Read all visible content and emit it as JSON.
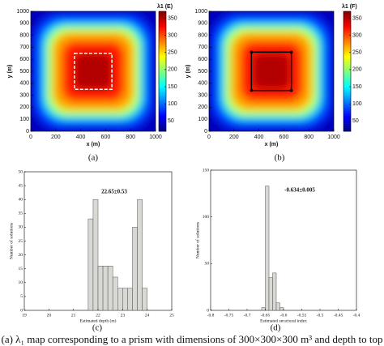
{
  "chart_data": [
    {
      "type": "heatmap",
      "label": "(a)",
      "colorbar_title": "λ1 (E)",
      "xlabel": "x (m)",
      "ylabel": "y (m)",
      "xlim": [
        0,
        1000
      ],
      "ylim": [
        0,
        1000
      ],
      "xticks": [
        0,
        200,
        400,
        600,
        800,
        1000
      ],
      "yticks": [
        0,
        100,
        200,
        300,
        400,
        500,
        600,
        700,
        800,
        900,
        1000
      ],
      "clim": [
        20,
        370
      ],
      "cticks": [
        50,
        100,
        150,
        200,
        250,
        300,
        350
      ],
      "colormap": "jet",
      "outline": {
        "x": [
          350,
          650
        ],
        "y": [
          350,
          650
        ],
        "color": "#ffffff",
        "dashed": true,
        "corner_markers": false
      }
    },
    {
      "type": "heatmap",
      "label": "(b)",
      "colorbar_title": "λ1 (F)",
      "xlabel": "x (m)",
      "ylabel": "y (m)",
      "xlim": [
        0,
        1000
      ],
      "ylim": [
        0,
        1000
      ],
      "xticks": [
        0,
        200,
        400,
        600,
        800,
        1000
      ],
      "yticks": [
        0,
        100,
        200,
        300,
        400,
        500,
        600,
        700,
        800,
        900,
        1000
      ],
      "clim": [
        20,
        370
      ],
      "cticks": [
        50,
        100,
        150,
        200,
        250,
        300,
        350
      ],
      "colormap": "jet",
      "outline": {
        "x": [
          340,
          660
        ],
        "y": [
          340,
          660
        ],
        "color": "#000000",
        "dashed": false,
        "corner_markers": true
      }
    },
    {
      "type": "histogram",
      "label": "(c)",
      "annotation": "22.65±0.53",
      "xlabel": "Estimated depth (m)",
      "ylabel": "Number of solutions",
      "bins": [
        21.6,
        21.8,
        22.0,
        22.2,
        22.4,
        22.6,
        22.8,
        23.0,
        23.2,
        23.4,
        23.6,
        23.8,
        24.0
      ],
      "counts": [
        33,
        40,
        16,
        16,
        16,
        12,
        8,
        8,
        8,
        30,
        40,
        8
      ],
      "color": "#d8d8d4",
      "xlim": [
        19,
        25
      ],
      "ylim": [
        0,
        50
      ],
      "xticks": [
        19,
        20,
        21,
        22,
        23,
        24,
        25
      ],
      "yticks": [
        0,
        5,
        10,
        15,
        20,
        25,
        30,
        35,
        40,
        45,
        50
      ]
    },
    {
      "type": "histogram",
      "label": "(d)",
      "annotation": "-0.634±0.005",
      "xlabel": "Estimated structural index",
      "ylabel": "Number of solutions",
      "bins": [
        -0.66,
        -0.65,
        -0.64,
        -0.63,
        -0.62,
        -0.61,
        -0.6
      ],
      "counts": [
        3,
        133,
        35,
        40,
        8,
        3
      ],
      "color": "#d8d8d4",
      "xlim": [
        -0.8,
        -0.4
      ],
      "ylim": [
        0,
        150
      ],
      "xticks": [
        -0.8,
        -0.75,
        -0.7,
        -0.65,
        -0.6,
        -0.55,
        -0.5,
        -0.45,
        -0.4
      ],
      "yticks": [
        0,
        50,
        100,
        150
      ]
    }
  ],
  "caption": "(a) λ₁ map corresponding to a prism with dimensions of 300×300×300 m³ and depth to top"
}
